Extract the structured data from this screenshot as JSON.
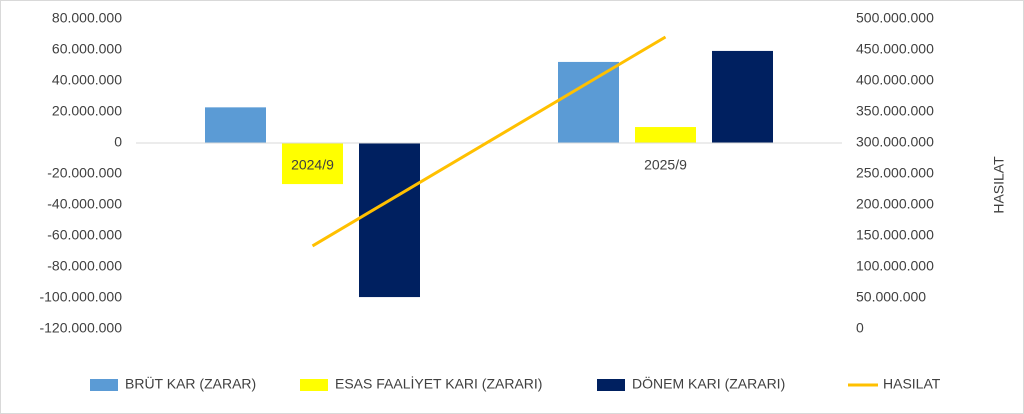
{
  "chart_data": {
    "type": "bar",
    "categories": [
      "2024/9",
      "2025/9"
    ],
    "series": [
      {
        "name": "BRÜT KAR (ZARAR)",
        "color": "#5b9bd5",
        "values": [
          23000000,
          52300000
        ]
      },
      {
        "name": "ESAS FAALİYET KARI (ZARARI)",
        "color": "#ffff00",
        "values": [
          -26500000,
          10300000
        ]
      },
      {
        "name": "DÖNEM KARI (ZARARI)",
        "color": "#002060",
        "values": [
          -99400000,
          59400000
        ]
      },
      {
        "name": "HASILAT",
        "color": "#ffc000",
        "type": "line",
        "axis": "y2",
        "values": [
          134000000,
          471000000
        ]
      }
    ],
    "ylim": [
      -120000000,
      80000000
    ],
    "yticks": [
      {
        "value": -120000000,
        "label": "-120.000.000"
      },
      {
        "value": -100000000,
        "label": "-100.000.000"
      },
      {
        "value": -80000000,
        "label": "-80.000.000"
      },
      {
        "value": -60000000,
        "label": "-60.000.000"
      },
      {
        "value": -40000000,
        "label": "-40.000.000"
      },
      {
        "value": -20000000,
        "label": "-20.000.000"
      },
      0,
      {
        "value": 20000000,
        "label": "20.000.000"
      },
      {
        "value": 40000000,
        "label": "40.000.000"
      },
      {
        "value": 60000000,
        "label": "60.000.000"
      },
      {
        "value": 80000000,
        "label": "80.000.000"
      }
    ],
    "y2lim": [
      0,
      500000000
    ],
    "y2ticks": [
      0,
      {
        "value": 50000000,
        "label": "50.000.000"
      },
      {
        "value": 100000000,
        "label": "100.000.000"
      },
      {
        "value": 150000000,
        "label": "150.000.000"
      },
      {
        "value": 200000000,
        "label": "200.000.000"
      },
      {
        "value": 250000000,
        "label": "250.000.000"
      },
      {
        "value": 300000000,
        "label": "300.000.000"
      },
      {
        "value": 350000000,
        "label": "350.000.000"
      },
      {
        "value": 400000000,
        "label": "400.000.000"
      },
      {
        "value": 450000000,
        "label": "450.000.000"
      },
      {
        "value": 500000000,
        "label": "500.000.000"
      }
    ],
    "y2label": "HASILAT",
    "legend": "bottom"
  }
}
